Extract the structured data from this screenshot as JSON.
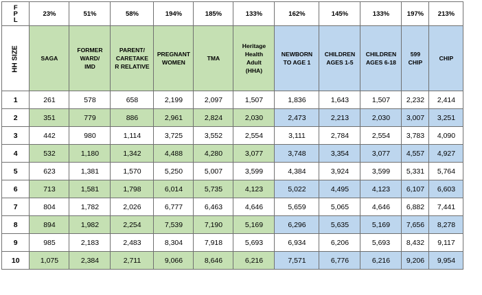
{
  "corner_letters": [
    "F",
    "P",
    "L"
  ],
  "hh_size_label": "HH SIZE",
  "columns": [
    {
      "fpl": "23%",
      "label_lines": [
        "SAGA"
      ],
      "color": "green"
    },
    {
      "fpl": "51%",
      "label_lines": [
        "FORMER",
        "WARD/",
        "IMD"
      ],
      "color": "green"
    },
    {
      "fpl": "58%",
      "label_lines": [
        "PARENT/",
        "CARETAKE",
        "R RELATIVE"
      ],
      "color": "green"
    },
    {
      "fpl": "194%",
      "label_lines": [
        "PREGNANT",
        "WOMEN"
      ],
      "color": "green"
    },
    {
      "fpl": "185%",
      "label_lines": [
        "TMA"
      ],
      "color": "green"
    },
    {
      "fpl": "133%",
      "label_lines": [
        "Heritage",
        "Health",
        "Adult",
        "(HHA)"
      ],
      "color": "green"
    },
    {
      "fpl": "162%",
      "label_lines": [
        "NEWBORN",
        "TO AGE 1"
      ],
      "color": "blue"
    },
    {
      "fpl": "145%",
      "label_lines": [
        "CHILDREN",
        "AGES 1-5"
      ],
      "color": "blue"
    },
    {
      "fpl": "133%",
      "label_lines": [
        "CHILDREN",
        "AGES 6-18"
      ],
      "color": "blue"
    },
    {
      "fpl": "197%",
      "label_lines": [
        "599",
        "CHIP"
      ],
      "color": "blue"
    },
    {
      "fpl": "213%",
      "label_lines": [
        "CHIP"
      ],
      "color": "blue"
    }
  ],
  "rows": [
    {
      "size": "1",
      "values": [
        "261",
        "578",
        "658",
        "2,199",
        "2,097",
        "1,507",
        "1,836",
        "1,643",
        "1,507",
        "2,232",
        "2,414"
      ]
    },
    {
      "size": "2",
      "values": [
        "351",
        "779",
        "886",
        "2,961",
        "2,824",
        "2,030",
        "2,473",
        "2,213",
        "2,030",
        "3,007",
        "3,251"
      ]
    },
    {
      "size": "3",
      "values": [
        "442",
        "980",
        "1,114",
        "3,725",
        "3,552",
        "2,554",
        "3,111",
        "2,784",
        "2,554",
        "3,783",
        "4,090"
      ]
    },
    {
      "size": "4",
      "values": [
        "532",
        "1,180",
        "1,342",
        "4,488",
        "4,280",
        "3,077",
        "3,748",
        "3,354",
        "3,077",
        "4,557",
        "4,927"
      ]
    },
    {
      "size": "5",
      "values": [
        "623",
        "1,381",
        "1,570",
        "5,250",
        "5,007",
        "3,599",
        "4,384",
        "3,924",
        "3,599",
        "5,331",
        "5,764"
      ]
    },
    {
      "size": "6",
      "values": [
        "713",
        "1,581",
        "1,798",
        "6,014",
        "5,735",
        "4,123",
        "5,022",
        "4,495",
        "4,123",
        "6,107",
        "6,603"
      ]
    },
    {
      "size": "7",
      "values": [
        "804",
        "1,782",
        "2,026",
        "6,777",
        "6,463",
        "4,646",
        "5,659",
        "5,065",
        "4,646",
        "6,882",
        "7,441"
      ]
    },
    {
      "size": "8",
      "values": [
        "894",
        "1,982",
        "2,254",
        "7,539",
        "7,190",
        "5,169",
        "6,296",
        "5,635",
        "5,169",
        "7,656",
        "8,278"
      ]
    },
    {
      "size": "9",
      "values": [
        "985",
        "2,183",
        "2,483",
        "8,304",
        "7,918",
        "5,693",
        "6,934",
        "6,206",
        "5,693",
        "8,432",
        "9,117"
      ]
    },
    {
      "size": "10",
      "values": [
        "1,075",
        "2,384",
        "2,711",
        "9,066",
        "8,646",
        "6,216",
        "7,571",
        "6,776",
        "6,216",
        "9,206",
        "9,954"
      ]
    }
  ],
  "colors": {
    "green": "#c5e0b3",
    "blue": "#bdd6ee",
    "white": "#ffffff",
    "border": "#6f6f6f"
  }
}
